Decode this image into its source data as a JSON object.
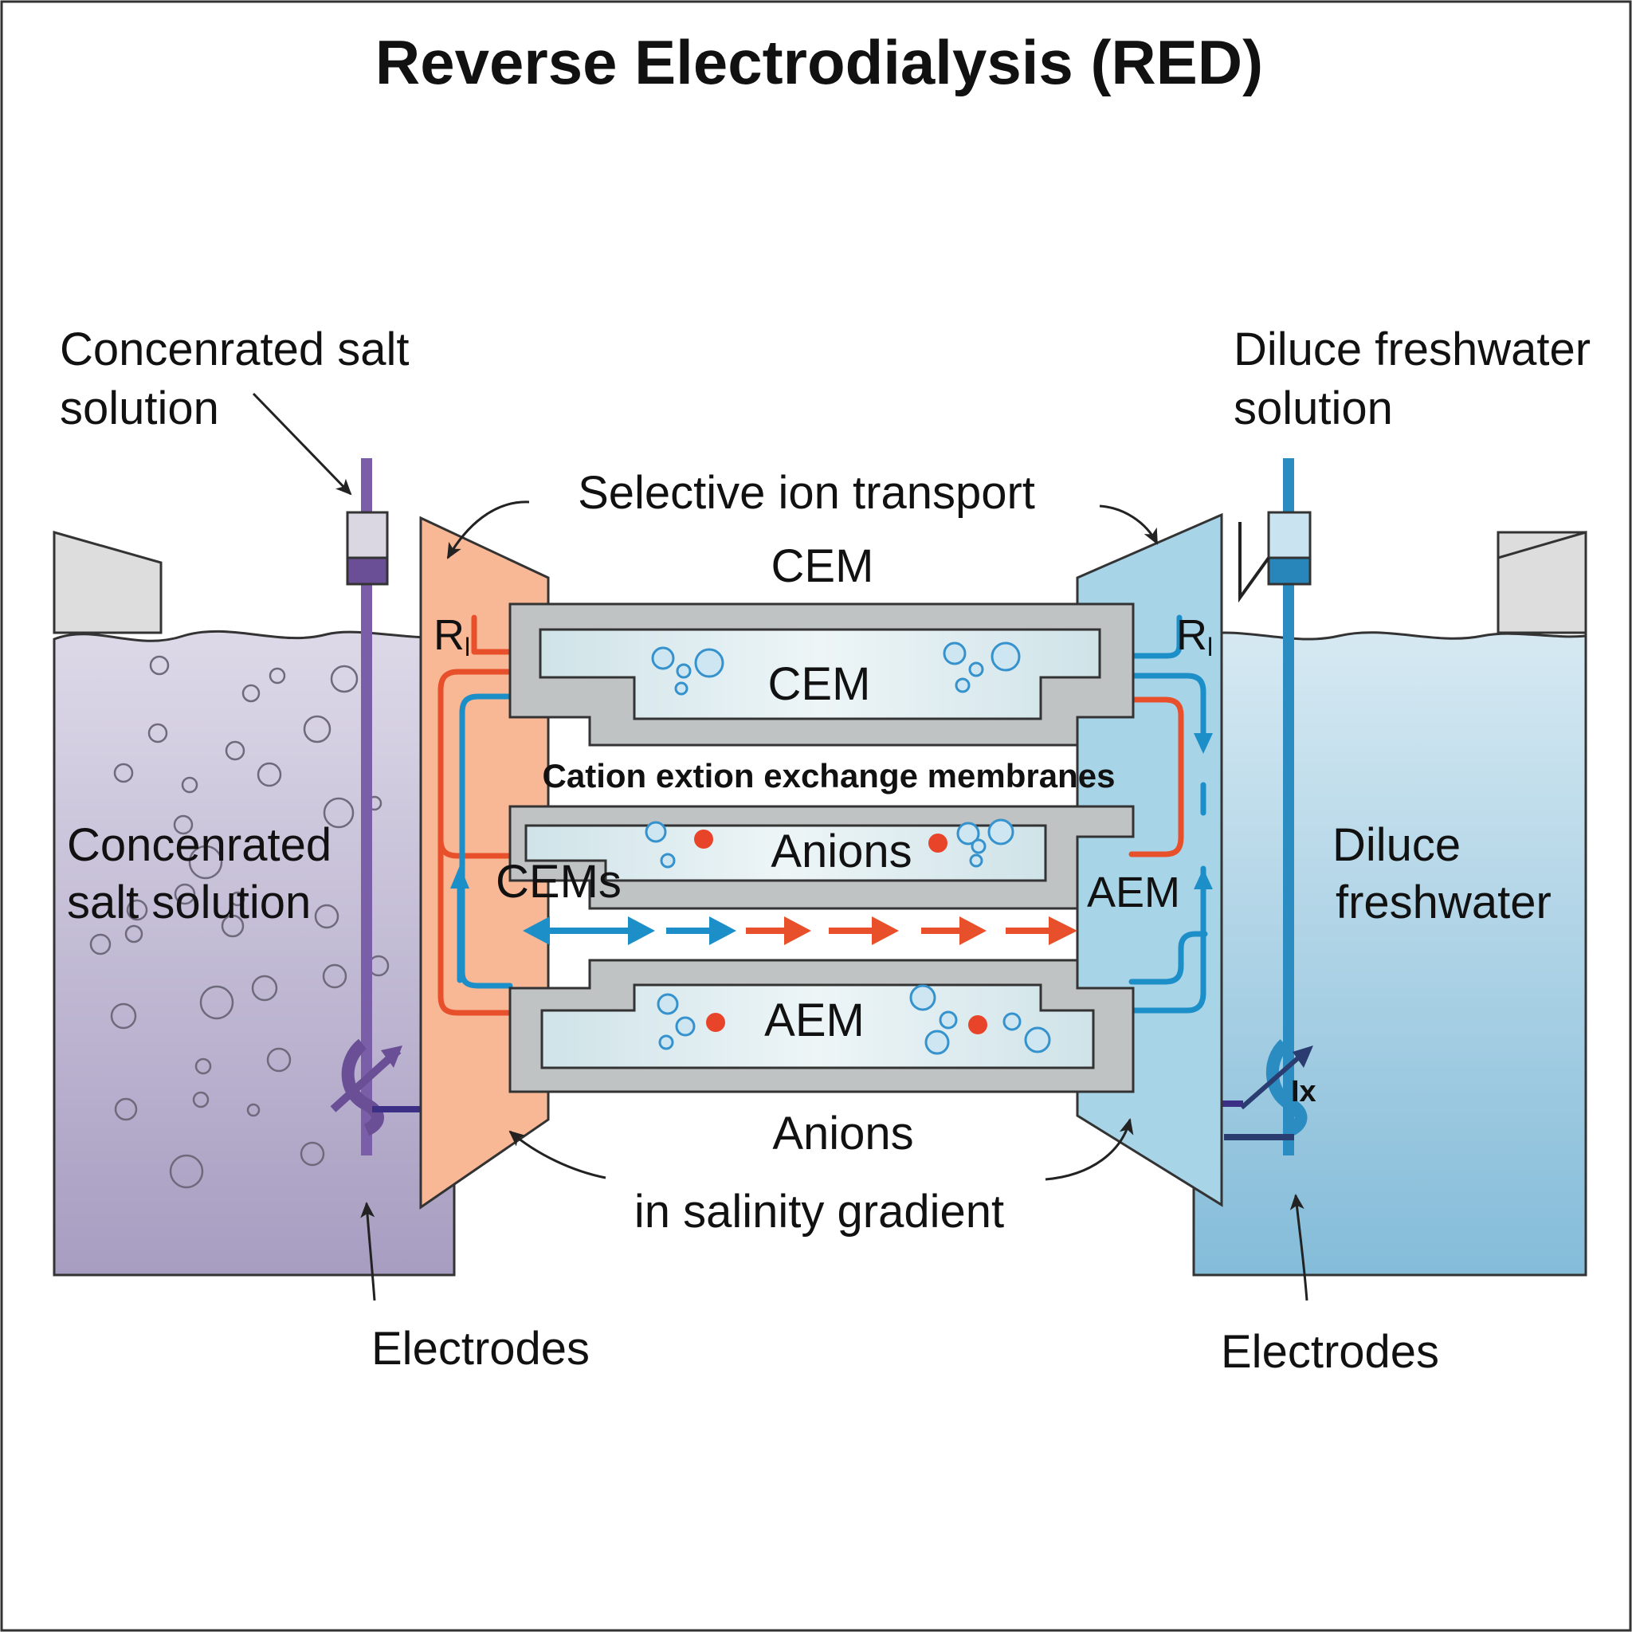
{
  "title": "Reverse Electrodialysis (RED)",
  "labels": {
    "left_source_line1": "Concenrated salt",
    "left_source_line2": "solution",
    "right_source_line1": "Diluce freshwater",
    "right_source_line2": "solution",
    "selective_transport": "Selective ion transport",
    "cem_top": "CEM",
    "cem_inner": "CEM",
    "cation_membranes": "Cation extion exchange membranes",
    "anions_middle": "Anions",
    "cems": "CEMs",
    "aem_right": "AEM",
    "aem_inner": "AEM",
    "anions_bottom": "Anions",
    "salinity_gradient": "in salinity gradient",
    "electrodes_left": "Electrodes",
    "electrodes_right": "Electrodes",
    "left_tank_line1": "Concenrated",
    "left_tank_line2": "salt solution",
    "right_tank_line1": "Diluce",
    "right_tank_line2": "freshwater",
    "resistor_left": "R",
    "resistor_left_sub": "l",
    "resistor_right": "R",
    "resistor_right_sub": "l",
    "current_right": "Ix"
  },
  "colors": {
    "concentrated": "#a9a0c4",
    "dilute": "#8ec3dd",
    "orange_plate": "#f8b896",
    "blue_plate": "#a8d4e8",
    "membrane_frame": "#bfc3c4",
    "membrane_fill": "#dcebef",
    "wire_red": "#e8502c",
    "wire_blue": "#1d8fc8",
    "electrode_left": "#7a5ea8",
    "electrode_right": "#2a8cc0",
    "ion_red": "#e8442a",
    "ion_blue": "#3592cc"
  }
}
